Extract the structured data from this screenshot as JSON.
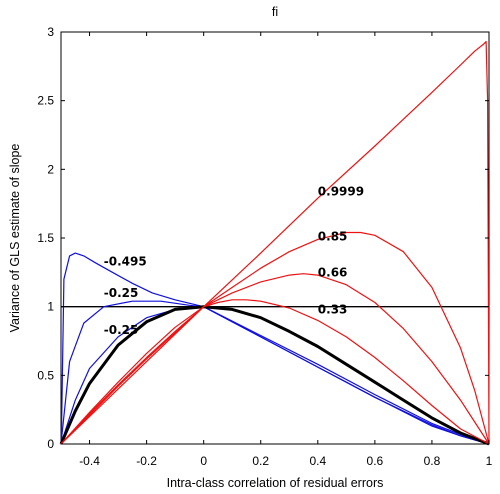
{
  "chart_data": {
    "type": "line",
    "title": "fi",
    "xlabel": "Intra-class correlation of residual errors",
    "ylabel": "Variance of GLS estimate of slope",
    "xlim": [
      -0.5,
      1.0
    ],
    "ylim": [
      0,
      3
    ],
    "x_ticks": [
      "-0.4",
      "-0.2",
      "0",
      "0.2",
      "0.4",
      "0.6",
      "0.8",
      "1"
    ],
    "y_ticks": [
      "0",
      "0.5",
      "1",
      "1.5",
      "2",
      "2.5",
      "3"
    ],
    "grid": false,
    "colors": {
      "blue": "#1010dd",
      "red": "#ee1111",
      "black": "#000000"
    },
    "reference_line": {
      "y": 1,
      "color": "#000000"
    },
    "series": [
      {
        "color": "#1010dd",
        "label": "-0.495",
        "x": [
          -0.499,
          -0.49,
          -0.47,
          -0.45,
          -0.42,
          -0.38,
          -0.32,
          -0.25,
          -0.18,
          -0.1,
          0.0,
          0.1,
          0.2,
          0.3,
          0.4,
          0.5,
          0.6,
          0.7,
          0.8,
          0.9,
          0.95,
          1.0
        ],
        "y": [
          0.0,
          1.2,
          1.37,
          1.39,
          1.37,
          1.32,
          1.25,
          1.17,
          1.1,
          1.05,
          1.0,
          0.89,
          0.78,
          0.67,
          0.56,
          0.45,
          0.34,
          0.24,
          0.14,
          0.06,
          0.03,
          0.0
        ]
      },
      {
        "color": "#1010dd",
        "label": "-0.25",
        "x": [
          -0.5,
          -0.47,
          -0.42,
          -0.35,
          -0.25,
          -0.15,
          -0.05,
          0.0,
          0.2,
          0.4,
          0.6,
          0.8,
          0.9,
          1.0
        ],
        "y": [
          0.0,
          0.6,
          0.88,
          1.0,
          1.04,
          1.04,
          1.01,
          1.0,
          0.78,
          0.56,
          0.34,
          0.13,
          0.06,
          0.0
        ]
      },
      {
        "color": "#1010dd",
        "label": "-0.25",
        "x": [
          -0.5,
          -0.45,
          -0.4,
          -0.3,
          -0.2,
          -0.1,
          0.0,
          0.2,
          0.4,
          0.6,
          0.8,
          0.9,
          1.0
        ],
        "y": [
          0.0,
          0.32,
          0.55,
          0.78,
          0.92,
          0.98,
          1.0,
          0.79,
          0.58,
          0.36,
          0.15,
          0.07,
          0.0
        ]
      },
      {
        "color": "#000000",
        "label": "",
        "x": [
          -0.5,
          -0.45,
          -0.4,
          -0.3,
          -0.2,
          -0.1,
          0.0,
          0.1,
          0.2,
          0.3,
          0.4,
          0.5,
          0.6,
          0.7,
          0.8,
          0.9,
          1.0
        ],
        "y": [
          0.0,
          0.24,
          0.44,
          0.72,
          0.89,
          0.98,
          1.0,
          0.98,
          0.92,
          0.82,
          0.71,
          0.58,
          0.45,
          0.32,
          0.19,
          0.08,
          0.0
        ]
      },
      {
        "color": "#ee1111",
        "label": "0.33",
        "x": [
          -0.5,
          -0.4,
          -0.3,
          -0.2,
          -0.1,
          0.0,
          0.05,
          0.1,
          0.15,
          0.2,
          0.3,
          0.4,
          0.5,
          0.6,
          0.7,
          0.8,
          0.9,
          1.0
        ],
        "y": [
          0.0,
          0.23,
          0.45,
          0.66,
          0.85,
          1.0,
          1.03,
          1.05,
          1.05,
          1.04,
          0.99,
          0.9,
          0.78,
          0.63,
          0.46,
          0.28,
          0.11,
          0.0
        ]
      },
      {
        "color": "#ee1111",
        "label": "0.66",
        "x": [
          -0.5,
          -0.4,
          -0.3,
          -0.2,
          -0.1,
          0.0,
          0.1,
          0.2,
          0.3,
          0.35,
          0.4,
          0.5,
          0.6,
          0.7,
          0.8,
          0.9,
          0.95,
          1.0
        ],
        "y": [
          0.0,
          0.22,
          0.43,
          0.63,
          0.82,
          1.0,
          1.1,
          1.18,
          1.23,
          1.24,
          1.23,
          1.16,
          1.03,
          0.84,
          0.6,
          0.32,
          0.16,
          0.0
        ]
      },
      {
        "color": "#ee1111",
        "label": "0.85",
        "x": [
          -0.5,
          -0.4,
          -0.3,
          -0.2,
          -0.1,
          0.0,
          0.1,
          0.2,
          0.3,
          0.4,
          0.5,
          0.55,
          0.6,
          0.7,
          0.8,
          0.9,
          0.95,
          1.0
        ],
        "y": [
          0.0,
          0.21,
          0.42,
          0.62,
          0.81,
          1.0,
          1.14,
          1.28,
          1.4,
          1.49,
          1.54,
          1.54,
          1.52,
          1.4,
          1.14,
          0.7,
          0.39,
          0.0
        ]
      },
      {
        "color": "#ee1111",
        "label": "0.9999",
        "x": [
          -0.5,
          -0.2,
          0.0,
          0.2,
          0.4,
          0.6,
          0.8,
          0.9,
          0.95,
          0.98,
          0.99,
          0.995,
          1.0
        ],
        "y": [
          0.0,
          0.6,
          1.0,
          1.39,
          1.79,
          2.17,
          2.56,
          2.76,
          2.86,
          2.91,
          2.93,
          2.5,
          0.0
        ]
      }
    ],
    "annotations": [
      "-0.495",
      "-0.25",
      "-0.25",
      "0.9999",
      "0.85",
      "0.66",
      "0.33"
    ]
  }
}
